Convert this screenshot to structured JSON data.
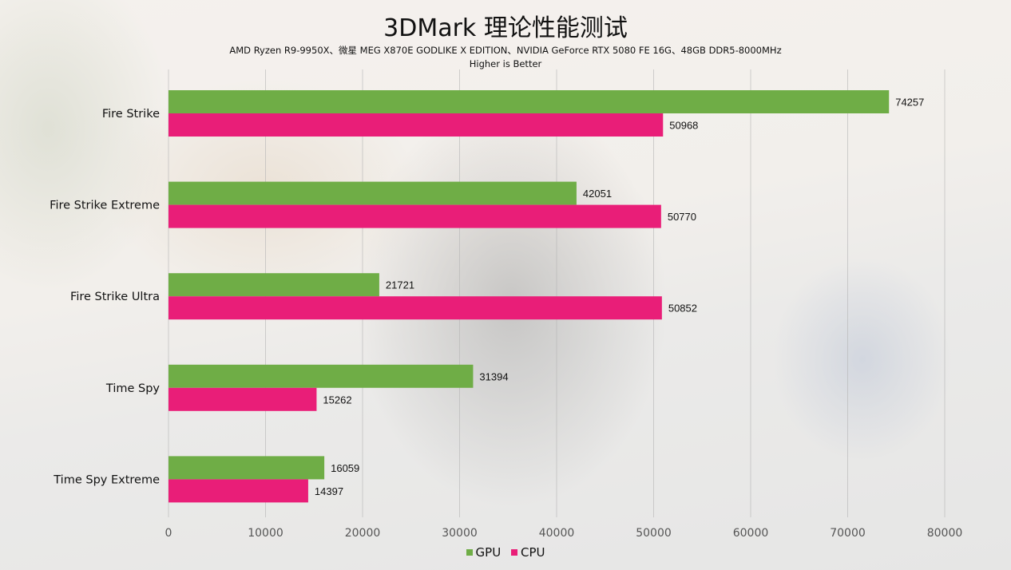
{
  "chart_data": {
    "type": "bar",
    "orientation": "horizontal",
    "title": "3DMark 理论性能测试",
    "subtitle": "AMD Ryzen R9-9950X、微星 MEG X870E GODLIKE X EDITION、NVIDIA GeForce RTX 5080 FE 16G、48GB DDR5-8000MHz",
    "note": "Higher is Better",
    "categories": [
      "Fire Strike",
      "Fire Strike Extreme",
      "Fire Strike Ultra",
      "Time Spy",
      "Time Spy Extreme"
    ],
    "series": [
      {
        "name": "GPU",
        "color": "#6fad46",
        "values": [
          74257,
          42051,
          21721,
          31394,
          16059
        ]
      },
      {
        "name": "CPU",
        "color": "#e91e78",
        "values": [
          50968,
          50770,
          50852,
          15262,
          14397
        ]
      }
    ],
    "xlabel": "",
    "ylabel": "",
    "xlim": [
      0,
      80000
    ],
    "xticks": [
      0,
      10000,
      20000,
      30000,
      40000,
      50000,
      60000,
      70000,
      80000
    ],
    "grid": true,
    "legend_position": "bottom"
  }
}
